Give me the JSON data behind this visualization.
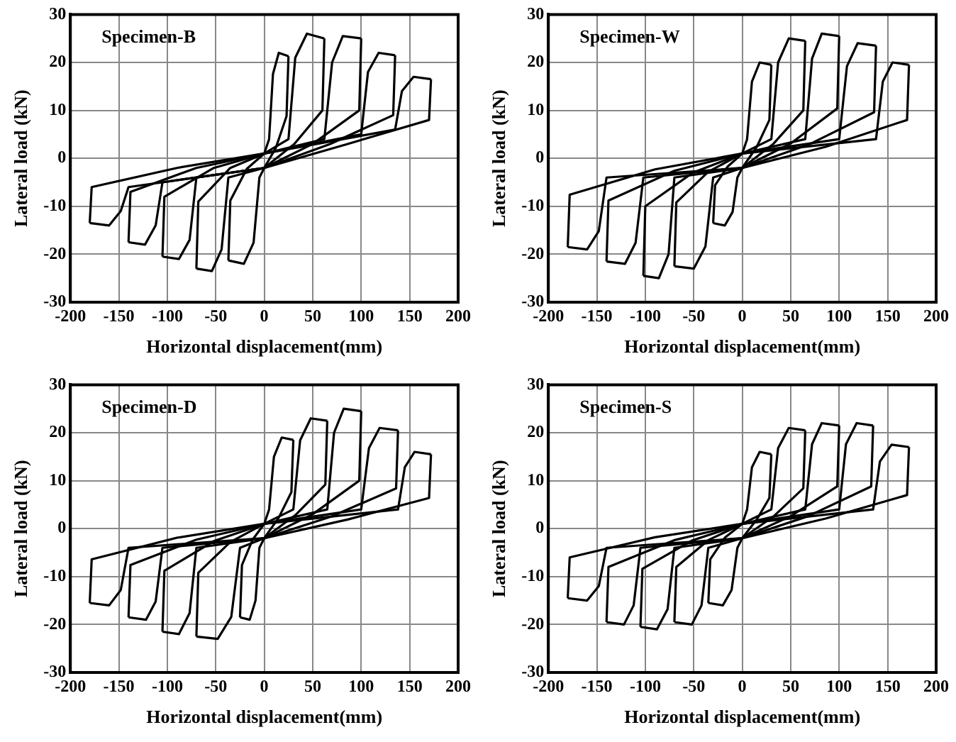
{
  "chart_data": [
    {
      "type": "line",
      "title": "Specimen-B",
      "xlabel": "Horizontal displacement(mm)",
      "ylabel": "Lateral load (kN)",
      "xlim": [
        -200,
        200
      ],
      "xticks": [
        -200,
        -150,
        -100,
        -50,
        0,
        50,
        100,
        150,
        200
      ],
      "ylim": [
        -30,
        30
      ],
      "yticks": [
        -30,
        -20,
        -10,
        0,
        10,
        20,
        30
      ],
      "grid": true,
      "marker": "none",
      "series": [
        {
          "color": "#000000",
          "x": [
            0,
            5,
            9,
            15,
            25
          ],
          "values": [
            1,
            4,
            17.6,
            22,
            21.3
          ]
        },
        {
          "color": "#000000",
          "x": [
            25,
            23,
            12,
            0,
            -5,
            -11,
            -21,
            -37
          ],
          "values": [
            21.3,
            8.8,
            2.2,
            -2,
            -4,
            -17.6,
            -22,
            -21.3
          ]
        },
        {
          "color": "#000000",
          "x": [
            -37,
            -35,
            -18,
            0,
            25,
            32,
            44,
            62
          ],
          "values": [
            -21.3,
            -8.8,
            -2.2,
            1,
            4,
            21,
            26,
            25
          ]
        },
        {
          "color": "#000000",
          "x": [
            62,
            60,
            31,
            0,
            -37,
            -44,
            -54,
            -70
          ],
          "values": [
            25,
            10,
            3,
            -2,
            -4,
            -19,
            -23.5,
            -23
          ]
        },
        {
          "color": "#000000",
          "x": [
            -70,
            -68,
            -35,
            0,
            62,
            70,
            81,
            100
          ],
          "values": [
            -23,
            -9,
            -2,
            1,
            4,
            20,
            25.5,
            25
          ]
        },
        {
          "color": "#000000",
          "x": [
            100,
            98,
            50,
            0,
            -70,
            -77,
            -88,
            -105
          ],
          "values": [
            25,
            10,
            3,
            -2,
            -4,
            -17,
            -21,
            -20.5
          ]
        },
        {
          "color": "#000000",
          "x": [
            -105,
            -103,
            -52,
            0,
            100,
            107,
            118,
            135
          ],
          "values": [
            -20.5,
            -8,
            -2,
            1,
            5,
            18,
            22,
            21.5
          ]
        },
        {
          "color": "#000000",
          "x": [
            135,
            133,
            68,
            0,
            -105,
            -112,
            -123,
            -140
          ],
          "values": [
            21.5,
            9,
            3,
            -2,
            -5,
            -14,
            -18,
            -17.5
          ]
        },
        {
          "color": "#000000",
          "x": [
            -140,
            -138,
            -70,
            0,
            135,
            142,
            154,
            172
          ],
          "values": [
            -17.5,
            -7,
            -2,
            1,
            6,
            14,
            17,
            16.5
          ]
        },
        {
          "color": "#000000",
          "x": [
            172,
            170,
            86,
            0,
            -140,
            -148,
            -160,
            -180
          ],
          "values": [
            16.5,
            8,
            3,
            -2,
            -6,
            -11,
            -14,
            -13.5
          ]
        },
        {
          "color": "#000000",
          "x": [
            -180,
            -178,
            -90,
            0
          ],
          "values": [
            -13.5,
            -6,
            -2,
            1
          ]
        }
      ]
    },
    {
      "type": "line",
      "title": "Specimen-W",
      "xlabel": "Horizontal displacement(mm)",
      "ylabel": "Lateral load (kN)",
      "xlim": [
        -200,
        200
      ],
      "xticks": [
        -200,
        -150,
        -100,
        -50,
        0,
        50,
        100,
        150,
        200
      ],
      "ylim": [
        -30,
        30
      ],
      "yticks": [
        -30,
        -20,
        -10,
        0,
        10,
        20,
        30
      ],
      "grid": true,
      "marker": "none",
      "series": [
        {
          "color": "#000000",
          "x": [
            0,
            5,
            10,
            18,
            30
          ],
          "values": [
            1,
            4,
            16,
            20,
            19.5
          ]
        },
        {
          "color": "#000000",
          "x": [
            30,
            28,
            15,
            0,
            -5,
            -10,
            -18,
            -30
          ],
          "values": [
            19.5,
            8,
            2.4,
            -2,
            -4,
            -11.2,
            -14,
            -13.5
          ]
        },
        {
          "color": "#000000",
          "x": [
            -30,
            -28,
            -15,
            0,
            30,
            37,
            48,
            65
          ],
          "values": [
            -13.5,
            -5.6,
            -1.7,
            1,
            4,
            20,
            25,
            24.5
          ]
        },
        {
          "color": "#000000",
          "x": [
            65,
            63,
            32,
            0,
            -30,
            -38,
            -50,
            -70
          ],
          "values": [
            24.5,
            10,
            3,
            -2,
            -4,
            -18.4,
            -23,
            -22.5
          ]
        },
        {
          "color": "#000000",
          "x": [
            -70,
            -68,
            -35,
            0,
            65,
            72,
            82,
            100
          ],
          "values": [
            -22.5,
            -9.2,
            -2.8,
            1,
            4,
            20.8,
            26,
            25.5
          ]
        },
        {
          "color": "#000000",
          "x": [
            100,
            98,
            50,
            0,
            -70,
            -76,
            -86,
            -102
          ],
          "values": [
            25.5,
            10.4,
            3.1,
            -2,
            -4,
            -20,
            -25,
            -24.5
          ]
        },
        {
          "color": "#000000",
          "x": [
            -102,
            -100,
            -51,
            0,
            100,
            108,
            119,
            138
          ],
          "values": [
            -24.5,
            -10,
            -3,
            1,
            4,
            19.2,
            24,
            23.5
          ]
        },
        {
          "color": "#000000",
          "x": [
            138,
            136,
            69,
            0,
            -102,
            -110,
            -121,
            -140
          ],
          "values": [
            23.5,
            9.6,
            2.9,
            -2,
            -4,
            -17.6,
            -22,
            -21.5
          ]
        },
        {
          "color": "#000000",
          "x": [
            -140,
            -138,
            -70,
            0,
            138,
            145,
            155,
            172
          ],
          "values": [
            -21.5,
            -8.8,
            -2.6,
            1,
            4,
            16,
            20,
            19.5
          ]
        },
        {
          "color": "#000000",
          "x": [
            172,
            170,
            86,
            0,
            -140,
            -148,
            -160,
            -180
          ],
          "values": [
            19.5,
            8,
            2.4,
            -2,
            -4,
            -15.2,
            -19,
            -18.5
          ]
        },
        {
          "color": "#000000",
          "x": [
            -180,
            -178,
            -90,
            0
          ],
          "values": [
            -18.5,
            -7.6,
            -2.3,
            1
          ]
        }
      ]
    },
    {
      "type": "line",
      "title": "Specimen-D",
      "xlabel": "Horizontal displacement(mm)",
      "ylabel": "Lateral load (kN)",
      "xlim": [
        -200,
        200
      ],
      "xticks": [
        -200,
        -150,
        -100,
        -50,
        0,
        50,
        100,
        150,
        200
      ],
      "ylim": [
        -30,
        30
      ],
      "yticks": [
        -30,
        -20,
        -10,
        0,
        10,
        20,
        30
      ],
      "grid": true,
      "marker": "none",
      "series": [
        {
          "color": "#000000",
          "x": [
            0,
            5,
            10,
            18,
            30
          ],
          "values": [
            1,
            4,
            15,
            19,
            18.5
          ]
        },
        {
          "color": "#000000",
          "x": [
            30,
            28,
            15,
            0,
            -5,
            -9,
            -15,
            -25
          ],
          "values": [
            18.5,
            7.6,
            2.3,
            -2,
            -4,
            -15,
            -19,
            -18.5
          ]
        },
        {
          "color": "#000000",
          "x": [
            -25,
            -23,
            -12,
            0,
            30,
            37,
            48,
            65
          ],
          "values": [
            -18.5,
            -7.6,
            -2.3,
            1,
            4,
            18.4,
            23,
            22.5
          ]
        },
        {
          "color": "#000000",
          "x": [
            65,
            63,
            32,
            0,
            -25,
            -34,
            -48,
            -70
          ],
          "values": [
            22.5,
            9.2,
            2.8,
            -2,
            -4,
            -18.4,
            -23,
            -22.5
          ]
        },
        {
          "color": "#000000",
          "x": [
            -70,
            -68,
            -35,
            0,
            65,
            72,
            82,
            100
          ],
          "values": [
            -22.5,
            -9.2,
            -2.8,
            1,
            4,
            20,
            25,
            24.5
          ]
        },
        {
          "color": "#000000",
          "x": [
            100,
            98,
            50,
            0,
            -70,
            -77,
            -88,
            -105
          ],
          "values": [
            24.5,
            10,
            3,
            -2,
            -4,
            -17.6,
            -22,
            -21.5
          ]
        },
        {
          "color": "#000000",
          "x": [
            -105,
            -103,
            -52,
            0,
            100,
            108,
            119,
            138
          ],
          "values": [
            -21.5,
            -8.8,
            -2.6,
            1,
            4,
            16.8,
            21,
            20.5
          ]
        },
        {
          "color": "#000000",
          "x": [
            138,
            136,
            69,
            0,
            -105,
            -112,
            -122,
            -140
          ],
          "values": [
            20.5,
            8.4,
            2.5,
            -2,
            -4,
            -15.2,
            -19,
            -18.5
          ]
        },
        {
          "color": "#000000",
          "x": [
            -140,
            -138,
            -70,
            0,
            138,
            145,
            155,
            172
          ],
          "values": [
            -18.5,
            -7.6,
            -2.3,
            1,
            4,
            12.8,
            16,
            15.5
          ]
        },
        {
          "color": "#000000",
          "x": [
            172,
            170,
            86,
            0,
            -140,
            -148,
            -160,
            -180
          ],
          "values": [
            15.5,
            6.4,
            1.9,
            -2,
            -4,
            -12.8,
            -16,
            -15.5
          ]
        },
        {
          "color": "#000000",
          "x": [
            -180,
            -178,
            -90,
            0
          ],
          "values": [
            -15.5,
            -6.4,
            -1.9,
            1
          ]
        }
      ]
    },
    {
      "type": "line",
      "title": "Specimen-S",
      "xlabel": "Horizontal displacement(mm)",
      "ylabel": "Lateral load (kN)",
      "xlim": [
        -200,
        200
      ],
      "xticks": [
        -200,
        -150,
        -100,
        -50,
        0,
        50,
        100,
        150,
        200
      ],
      "ylim": [
        -30,
        30
      ],
      "yticks": [
        -30,
        -20,
        -10,
        0,
        10,
        20,
        30
      ],
      "grid": true,
      "marker": "none",
      "series": [
        {
          "color": "#000000",
          "x": [
            0,
            5,
            10,
            18,
            30
          ],
          "values": [
            1,
            4,
            12.8,
            16,
            15.5
          ]
        },
        {
          "color": "#000000",
          "x": [
            30,
            28,
            15,
            0,
            -5,
            -11,
            -20,
            -35
          ],
          "values": [
            15.5,
            6.4,
            1.9,
            -2,
            -4,
            -12.8,
            -16,
            -15.5
          ]
        },
        {
          "color": "#000000",
          "x": [
            -35,
            -33,
            -18,
            0,
            30,
            37,
            48,
            65
          ],
          "values": [
            -15.5,
            -6.4,
            -1.9,
            1,
            4,
            16.8,
            21,
            20.5
          ]
        },
        {
          "color": "#000000",
          "x": [
            65,
            63,
            32,
            0,
            -35,
            -42,
            -52,
            -70
          ],
          "values": [
            20.5,
            8.4,
            2.5,
            -2,
            -4,
            -16,
            -20,
            -19.5
          ]
        },
        {
          "color": "#000000",
          "x": [
            -70,
            -68,
            -35,
            0,
            65,
            72,
            82,
            100
          ],
          "values": [
            -19.5,
            -8,
            -2.4,
            1,
            4,
            17.6,
            22,
            21.5
          ]
        },
        {
          "color": "#000000",
          "x": [
            100,
            98,
            50,
            0,
            -70,
            -77,
            -88,
            -105
          ],
          "values": [
            21.5,
            8.8,
            2.6,
            -2,
            -4,
            -16.8,
            -21,
            -20.5
          ]
        },
        {
          "color": "#000000",
          "x": [
            -105,
            -103,
            -52,
            0,
            100,
            107,
            118,
            135
          ],
          "values": [
            -20.5,
            -8.4,
            -2.5,
            1,
            4,
            17.6,
            22,
            21.5
          ]
        },
        {
          "color": "#000000",
          "x": [
            135,
            133,
            68,
            0,
            -105,
            -112,
            -122,
            -140
          ],
          "values": [
            21.5,
            8.8,
            2.6,
            -2,
            -4,
            -16,
            -20,
            -19.5
          ]
        },
        {
          "color": "#000000",
          "x": [
            -140,
            -138,
            -70,
            0,
            135,
            142,
            154,
            172
          ],
          "values": [
            -19.5,
            -8,
            -2.4,
            1,
            4,
            14,
            17.5,
            17
          ]
        },
        {
          "color": "#000000",
          "x": [
            172,
            170,
            86,
            0,
            -140,
            -148,
            -160,
            -180
          ],
          "values": [
            17,
            7,
            2.1,
            -2,
            -4,
            -12,
            -15,
            -14.5
          ]
        },
        {
          "color": "#000000",
          "x": [
            -180,
            -178,
            -90,
            0
          ],
          "values": [
            -14.5,
            -6,
            -1.8,
            1
          ]
        }
      ]
    }
  ]
}
